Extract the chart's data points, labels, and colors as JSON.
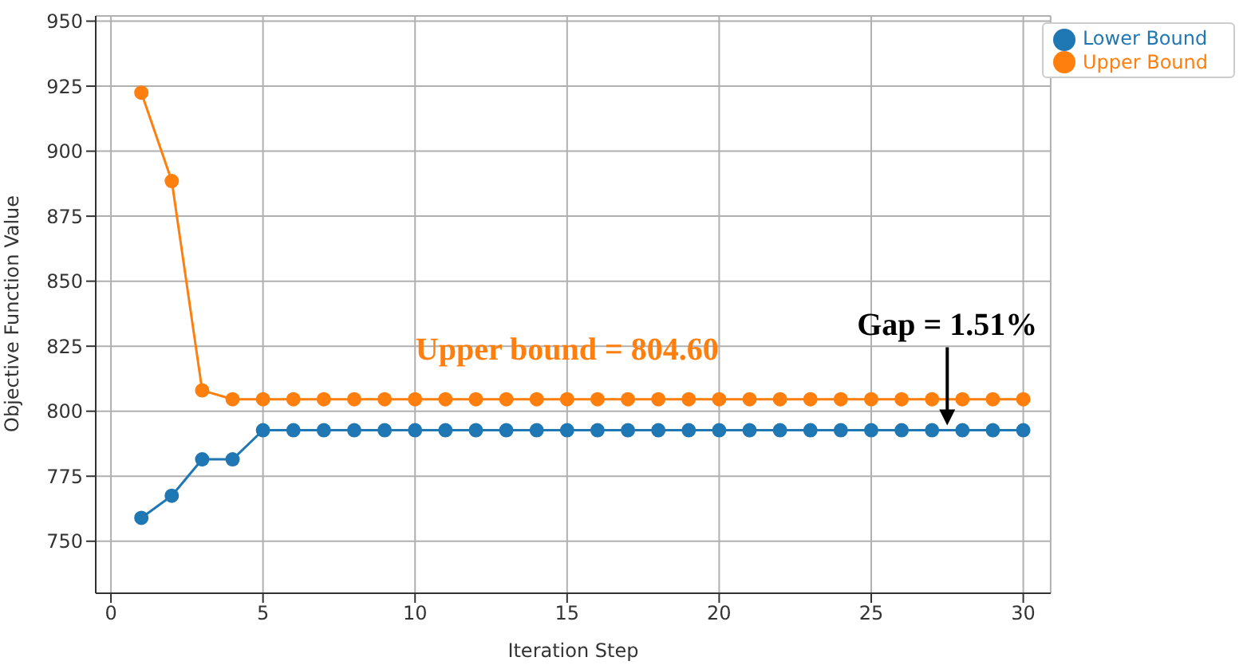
{
  "chart_data": {
    "type": "line",
    "xlabel": "Iteration Step",
    "ylabel": "Objective Function Value",
    "x": [
      1,
      2,
      3,
      4,
      5,
      6,
      7,
      8,
      9,
      10,
      11,
      12,
      13,
      14,
      15,
      16,
      17,
      18,
      19,
      20,
      21,
      22,
      23,
      24,
      25,
      26,
      27,
      28,
      29,
      30
    ],
    "series": [
      {
        "name": "Lower Bound",
        "color": "#1f77b4",
        "values": [
          759,
          767.5,
          781.5,
          781.5,
          792.7,
          792.7,
          792.7,
          792.7,
          792.7,
          792.7,
          792.7,
          792.7,
          792.7,
          792.7,
          792.7,
          792.7,
          792.7,
          792.7,
          792.7,
          792.7,
          792.7,
          792.7,
          792.7,
          792.7,
          792.7,
          792.7,
          792.7,
          792.7,
          792.7,
          792.7
        ]
      },
      {
        "name": "Upper Bound",
        "color": "#ff7f0e",
        "values": [
          922.5,
          888.5,
          808,
          804.6,
          804.6,
          804.6,
          804.6,
          804.6,
          804.6,
          804.6,
          804.6,
          804.6,
          804.6,
          804.6,
          804.6,
          804.6,
          804.6,
          804.6,
          804.6,
          804.6,
          804.6,
          804.6,
          804.6,
          804.6,
          804.6,
          804.6,
          804.6,
          804.6,
          804.6,
          804.6
        ]
      }
    ],
    "xlim": [
      -0.5,
      30.9
    ],
    "xticks": [
      0,
      5,
      10,
      15,
      20,
      25,
      30
    ],
    "ylim": [
      730,
      952
    ],
    "yticks": [
      750,
      775,
      800,
      825,
      850,
      875,
      900,
      925,
      950
    ],
    "annotations": [
      {
        "text": "Upper bound = 804.60",
        "x": 15,
        "y": 804.6
      },
      {
        "text": "Gap = 1.51%",
        "x": 27.5,
        "y": 792.7
      }
    ],
    "grid": true,
    "legend": "top right",
    "marker": "circle",
    "line_style": "solid"
  }
}
